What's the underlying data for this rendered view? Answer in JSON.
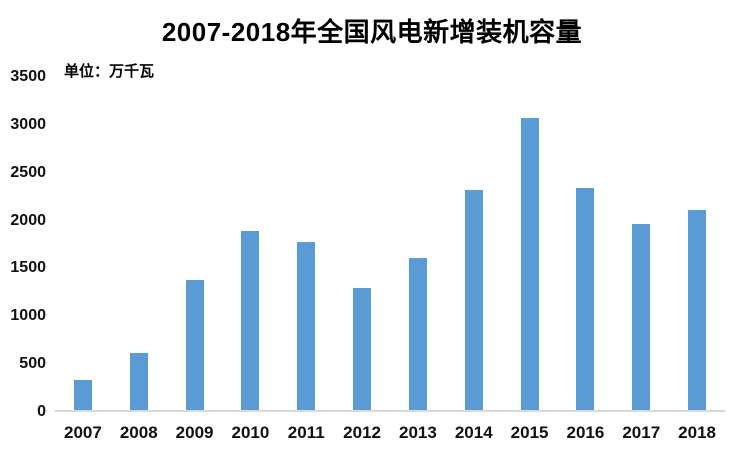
{
  "title": "2007-2018年全国风电新增装机容量",
  "unit_label": "单位：万千瓦",
  "colors": {
    "bar": "#5B9BD5",
    "axis_line": "#D9D9D9",
    "text": "#111111"
  },
  "chart_data": {
    "type": "bar",
    "title": "2007-2018年全国风电新增装机容量",
    "subtitle": "单位：万千瓦",
    "categories": [
      "2007",
      "2008",
      "2009",
      "2010",
      "2011",
      "2012",
      "2013",
      "2014",
      "2015",
      "2016",
      "2017",
      "2018"
    ],
    "values": [
      330,
      620,
      1380,
      1890,
      1775,
      1300,
      1610,
      2320,
      3075,
      2340,
      1965,
      2110
    ],
    "xlabel": "",
    "ylabel": "单位：万千瓦",
    "ylim": [
      0,
      3500
    ],
    "yticks": [
      0,
      500,
      1000,
      1500,
      2000,
      2500,
      3000,
      3500
    ],
    "grid": false,
    "legend": "none",
    "bar_color": "#5B9BD5"
  }
}
